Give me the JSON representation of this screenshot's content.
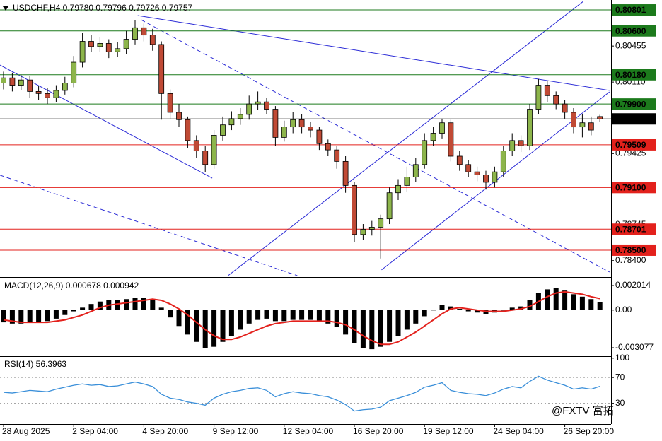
{
  "chart_data": [
    {
      "type": "candlestick",
      "title": "USDCHF,H4  0.79780 0.79796 0.79726 0.79757",
      "categories": [
        "28 Aug 2025",
        null,
        null,
        null,
        null,
        null,
        null,
        null,
        "2 Sep 04:00",
        null,
        null,
        null,
        null,
        null,
        null,
        null,
        "4 Sep 20:00",
        null,
        null,
        null,
        null,
        null,
        null,
        null,
        "9 Sep 12:00",
        null,
        null,
        null,
        null,
        null,
        null,
        null,
        "12 Sep 04:00",
        null,
        null,
        null,
        null,
        null,
        null,
        null,
        "16 Sep 20:00",
        null,
        null,
        null,
        null,
        null,
        null,
        null,
        "19 Sep 12:00",
        null,
        null,
        null,
        null,
        null,
        null,
        null,
        "24 Sep 04:00",
        null,
        null,
        null,
        null,
        null,
        null,
        null,
        "26 Sep 20:00",
        null,
        null,
        null,
        null
      ],
      "open": [
        0.801,
        0.8015,
        0.8008,
        0.8013,
        0.8002,
        0.8,
        0.7996,
        0.8003,
        0.801,
        0.803,
        0.805,
        0.8045,
        0.8048,
        0.804,
        0.8043,
        0.8052,
        0.8063,
        0.8056,
        0.8047,
        0.8,
        0.7982,
        0.7975,
        0.7955,
        0.7945,
        0.7932,
        0.796,
        0.797,
        0.7976,
        0.798,
        0.799,
        0.7992,
        0.7985,
        0.7958,
        0.7968,
        0.7975,
        0.7968,
        0.7965,
        0.7952,
        0.7946,
        0.7935,
        0.7912,
        0.7865,
        0.787,
        0.7872,
        0.788,
        0.7905,
        0.7912,
        0.792,
        0.7932,
        0.7955,
        0.7962,
        0.7972,
        0.794,
        0.7932,
        0.7925,
        0.7922,
        0.7915,
        0.7925,
        0.7945,
        0.7955,
        0.795,
        0.7985,
        0.8008,
        0.7998,
        0.799,
        0.7982,
        0.7968,
        0.7972,
        0.7978
      ],
      "high": [
        0.8021,
        0.802,
        0.8018,
        0.8017,
        0.8007,
        0.8005,
        0.8008,
        0.8016,
        0.8036,
        0.8058,
        0.8056,
        0.8054,
        0.8052,
        0.8049,
        0.806,
        0.807,
        0.8067,
        0.8062,
        0.805,
        0.8004,
        0.799,
        0.7978,
        0.796,
        0.795,
        0.7965,
        0.7978,
        0.7983,
        0.7986,
        0.7998,
        0.8002,
        0.7996,
        0.7988,
        0.7974,
        0.7982,
        0.798,
        0.7973,
        0.7968,
        0.7956,
        0.795,
        0.794,
        0.7915,
        0.7875,
        0.7878,
        0.7884,
        0.791,
        0.7918,
        0.793,
        0.7938,
        0.7962,
        0.7968,
        0.7976,
        0.7975,
        0.7945,
        0.7936,
        0.793,
        0.7926,
        0.793,
        0.795,
        0.7962,
        0.796,
        0.799,
        0.8014,
        0.8012,
        0.8002,
        0.7994,
        0.7986,
        0.798,
        0.7978,
        0.79796
      ],
      "low": [
        0.8004,
        0.8002,
        0.8003,
        0.7996,
        0.7994,
        0.799,
        0.7992,
        0.7999,
        0.8006,
        0.8025,
        0.804,
        0.804,
        0.8034,
        0.8035,
        0.8038,
        0.8047,
        0.805,
        0.8041,
        0.7975,
        0.7976,
        0.7968,
        0.7948,
        0.7938,
        0.7925,
        0.7928,
        0.7955,
        0.7965,
        0.797,
        0.7975,
        0.7984,
        0.798,
        0.795,
        0.7954,
        0.7962,
        0.7962,
        0.7958,
        0.7946,
        0.794,
        0.7928,
        0.7905,
        0.7858,
        0.786,
        0.7864,
        0.7842,
        0.7875,
        0.7898,
        0.7906,
        0.7915,
        0.7928,
        0.795,
        0.7957,
        0.7935,
        0.7926,
        0.792,
        0.7916,
        0.7908,
        0.791,
        0.792,
        0.794,
        0.7944,
        0.7946,
        0.798,
        0.7992,
        0.7985,
        0.7976,
        0.7962,
        0.7958,
        0.796,
        0.79726
      ],
      "close": [
        0.8015,
        0.8008,
        0.8013,
        0.8002,
        0.8,
        0.7996,
        0.8003,
        0.801,
        0.803,
        0.805,
        0.8045,
        0.8048,
        0.804,
        0.8043,
        0.8052,
        0.8063,
        0.8056,
        0.8047,
        0.8,
        0.7982,
        0.7975,
        0.7955,
        0.7945,
        0.7932,
        0.796,
        0.797,
        0.7976,
        0.798,
        0.799,
        0.7992,
        0.7985,
        0.7958,
        0.7968,
        0.7975,
        0.7968,
        0.7965,
        0.7952,
        0.7946,
        0.7935,
        0.7912,
        0.7865,
        0.787,
        0.7872,
        0.788,
        0.7905,
        0.7912,
        0.792,
        0.7932,
        0.7955,
        0.7962,
        0.7972,
        0.794,
        0.7932,
        0.7925,
        0.7922,
        0.7915,
        0.7925,
        0.7945,
        0.7955,
        0.795,
        0.7985,
        0.8008,
        0.7998,
        0.799,
        0.7982,
        0.7968,
        0.7972,
        0.7965,
        0.79757
      ],
      "up_color": "#8db54b",
      "down_color": "#c04a35",
      "ylim": [
        0.78256,
        0.80896
      ],
      "yticks": [
        0.80455,
        {
          "value": 0.8011,
          "label": "0.80110"
        },
        0.79425,
        0.78745,
        {
          "value": 0.784,
          "label": "0.78400"
        }
      ],
      "levels": [
        {
          "value": 0.80801,
          "label": "0.80801",
          "color": "#1c7a1c"
        },
        {
          "value": 0.806,
          "label": "0.80600",
          "color": "#1c7a1c"
        },
        {
          "value": 0.8018,
          "label": "0.80180",
          "color": "#1c7a1c"
        },
        {
          "value": 0.799,
          "label": "0.79900",
          "color": "#1c7a1c"
        },
        {
          "value": 0.79757,
          "label": "0.79757",
          "color": "#000000"
        },
        {
          "value": 0.79509,
          "label": "0.79509",
          "color": "#e3211c"
        },
        {
          "value": 0.791,
          "label": "0.79100",
          "color": "#e3211c"
        },
        {
          "value": 0.78701,
          "label": "0.78701",
          "color": "#e3211c"
        },
        {
          "value": 0.785,
          "label": "0.78500",
          "color": "#e3211c"
        }
      ],
      "trendlines": [
        {
          "x": [
            15.7,
            69.1
          ],
          "y": [
            0.80706,
            0.7829
          ],
          "style": "dashed",
          "color": "#2b2bd6"
        },
        {
          "x": [
            -0.4,
            33.5
          ],
          "y": [
            0.79218,
            0.78256
          ],
          "style": "dashed",
          "color": "#2b2bd6"
        },
        {
          "x": [
            -0.4,
            23.8
          ],
          "y": [
            0.80273,
            0.7919
          ],
          "style": "solid",
          "color": "#2b2bd6"
        },
        {
          "x": [
            15.3,
            69.1
          ],
          "y": [
            0.80747,
            0.8003
          ],
          "style": "solid",
          "color": "#2b2bd6"
        },
        {
          "x": [
            25.6,
            66.1
          ],
          "y": [
            0.78256,
            0.80882
          ],
          "style": "solid",
          "color": "#2b2bd6"
        },
        {
          "x": [
            43.1,
            69.1
          ],
          "y": [
            0.78311,
            0.80016
          ],
          "style": "solid",
          "color": "#2b2bd6"
        }
      ],
      "watermark": "@FXTV 富拓"
    },
    {
      "type": "macd",
      "title": "MACD(12,26,9) 0.000678 0.000942",
      "ylim": [
        -0.003656,
        0.00265
      ],
      "yticks": [
        0.002014,
        {
          "value": 0,
          "label": "0.00"
        },
        -0.003077
      ],
      "series": [
        {
          "kind": "histogram",
          "color": "#000000",
          "values": [
            -0.001,
            -0.0011,
            -0.0011,
            -0.001,
            -0.001,
            -0.0009,
            -0.0007,
            -0.0004,
            -0.0001,
            0.0002,
            0.0005,
            0.0007,
            0.0008,
            0.0008,
            0.0009,
            0.001,
            0.001,
            0.0009,
            0.0002,
            -0.0006,
            -0.0013,
            -0.002,
            -0.0026,
            -0.0031,
            -0.003,
            -0.0026,
            -0.0021,
            -0.0016,
            -0.0011,
            -0.0008,
            -0.0007,
            -0.0009,
            -0.0009,
            -0.0008,
            -0.0008,
            -0.0008,
            -0.0009,
            -0.0011,
            -0.0014,
            -0.002,
            -0.0027,
            -0.0031,
            -0.0032,
            -0.003,
            -0.0026,
            -0.0021,
            -0.0016,
            -0.0011,
            -0.0005,
            0.0,
            0.0004,
            0.0003,
            0.0001,
            -0.0001,
            -0.0002,
            -0.0003,
            -0.0002,
            0.0,
            0.0002,
            0.0003,
            0.0008,
            0.0014,
            0.0017,
            0.0018,
            0.0016,
            0.0013,
            0.0011,
            0.0009,
            0.000678
          ]
        },
        {
          "kind": "line",
          "color": "#e3211c",
          "values": [
            -0.0008,
            -0.0009,
            -0.001,
            -0.001,
            -0.001,
            -0.001,
            -0.0009,
            -0.0008,
            -0.0006,
            -0.0004,
            -0.0001,
            0.0002,
            0.0004,
            0.0005,
            0.0006,
            0.0007,
            0.0008,
            0.0009,
            0.0008,
            0.0005,
            0.0001,
            -0.0004,
            -0.001,
            -0.0016,
            -0.0021,
            -0.0024,
            -0.0024,
            -0.0022,
            -0.0019,
            -0.0016,
            -0.0013,
            -0.0011,
            -0.001,
            -0.0009,
            -0.0009,
            -0.0009,
            -0.0009,
            -0.0009,
            -0.001,
            -0.0012,
            -0.0016,
            -0.0021,
            -0.0025,
            -0.0028,
            -0.0028,
            -0.0026,
            -0.0022,
            -0.0018,
            -0.0013,
            -0.0008,
            -0.0003,
            0.0001,
            0.0002,
            0.0001,
            0.0,
            -0.0001,
            -0.0001,
            -0.0001,
            0.0,
            0.0001,
            0.0003,
            0.0007,
            0.0011,
            0.0014,
            0.0015,
            0.0014,
            0.0013,
            0.0011,
            0.000942
          ]
        }
      ]
    },
    {
      "type": "line",
      "title": "RSI(14) 56.3963",
      "ylim": [
        0,
        102
      ],
      "yticks": [
        100,
        70,
        30
      ],
      "levels": [
        70,
        30
      ],
      "color": "#3a8fd9",
      "values": [
        47,
        46,
        48,
        50,
        49,
        48,
        52,
        55,
        58,
        60,
        58,
        59,
        56,
        57,
        60,
        63,
        60,
        56,
        44,
        38,
        36,
        32,
        30,
        27,
        38,
        44,
        48,
        50,
        53,
        54,
        50,
        40,
        45,
        48,
        46,
        45,
        42,
        40,
        35,
        28,
        18,
        20,
        21,
        24,
        34,
        38,
        42,
        47,
        55,
        58,
        62,
        50,
        47,
        45,
        44,
        42,
        46,
        52,
        56,
        54,
        64,
        72,
        66,
        62,
        58,
        52,
        54,
        52,
        56.3963
      ]
    }
  ]
}
